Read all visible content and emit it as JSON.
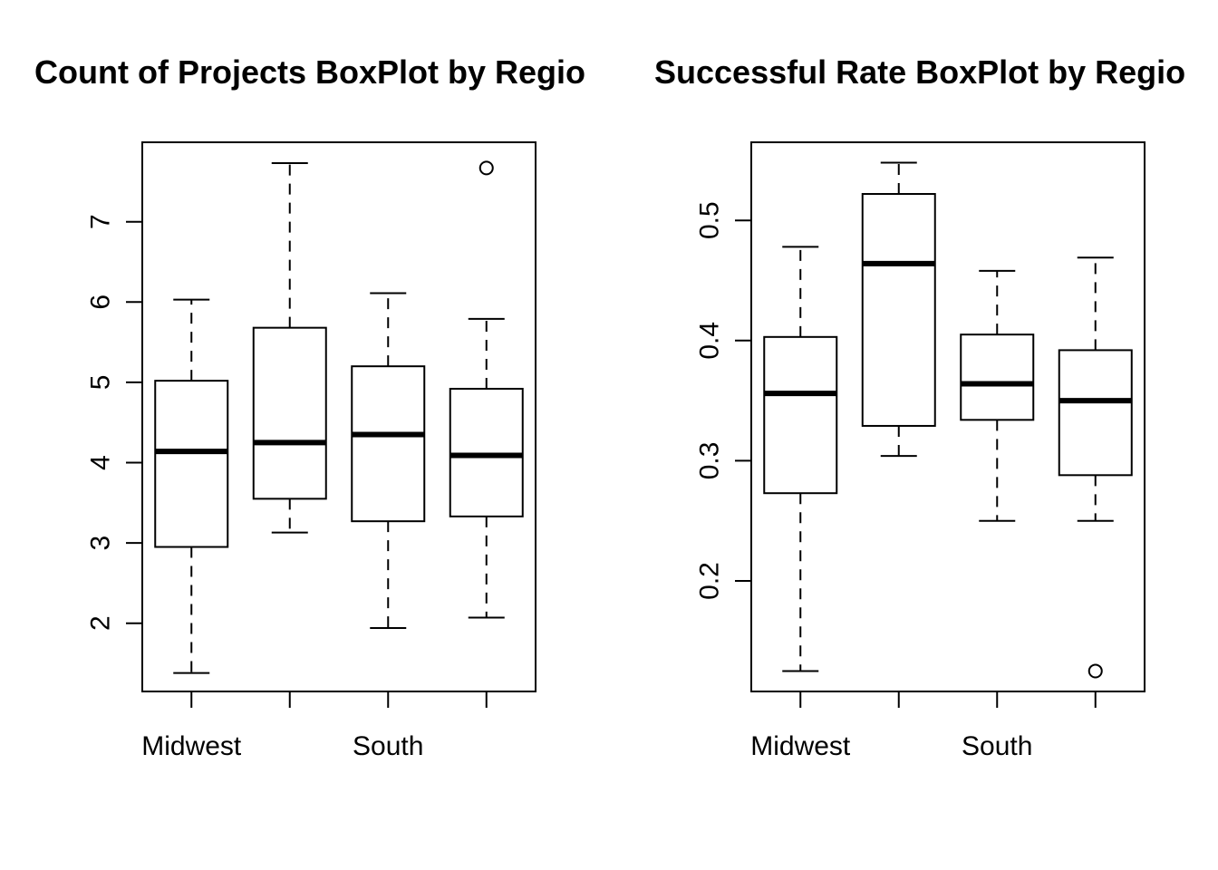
{
  "chart_data": [
    {
      "type": "boxplot",
      "title": "Count of Projects BoxPlot by Regio",
      "xlabel": "",
      "ylabel": "",
      "x_tick_labels": [
        "Midwest",
        "",
        "South",
        ""
      ],
      "y_ticks": [
        2,
        3,
        4,
        5,
        6,
        7
      ],
      "ylim": [
        1.15,
        7.99
      ],
      "grid": false,
      "legend": "none",
      "boxes": [
        {
          "whisker_low": 1.38,
          "q1": 2.95,
          "median": 4.14,
          "q3": 5.02,
          "whisker_high": 6.03,
          "outliers": []
        },
        {
          "whisker_low": 3.13,
          "q1": 3.55,
          "median": 4.25,
          "q3": 5.68,
          "whisker_high": 7.73,
          "outliers": []
        },
        {
          "whisker_low": 1.94,
          "q1": 3.27,
          "median": 4.35,
          "q3": 5.2,
          "whisker_high": 6.11,
          "outliers": []
        },
        {
          "whisker_low": 2.07,
          "q1": 3.33,
          "median": 4.09,
          "q3": 4.92,
          "whisker_high": 5.79,
          "outliers": [
            7.67
          ]
        }
      ]
    },
    {
      "type": "boxplot",
      "title": "Successful Rate BoxPlot by Regio",
      "xlabel": "",
      "ylabel": "",
      "x_tick_labels": [
        "Midwest",
        "",
        "South",
        ""
      ],
      "y_ticks": [
        0.2,
        0.3,
        0.4,
        0.5
      ],
      "ylim": [
        0.108,
        0.565
      ],
      "grid": false,
      "legend": "none",
      "boxes": [
        {
          "whisker_low": 0.125,
          "q1": 0.273,
          "median": 0.356,
          "q3": 0.403,
          "whisker_high": 0.478,
          "outliers": []
        },
        {
          "whisker_low": 0.304,
          "q1": 0.329,
          "median": 0.464,
          "q3": 0.522,
          "whisker_high": 0.548,
          "outliers": []
        },
        {
          "whisker_low": 0.25,
          "q1": 0.334,
          "median": 0.364,
          "q3": 0.405,
          "whisker_high": 0.458,
          "outliers": []
        },
        {
          "whisker_low": 0.25,
          "q1": 0.288,
          "median": 0.35,
          "q3": 0.392,
          "whisker_high": 0.469,
          "outliers": [
            0.125
          ]
        }
      ]
    }
  ]
}
